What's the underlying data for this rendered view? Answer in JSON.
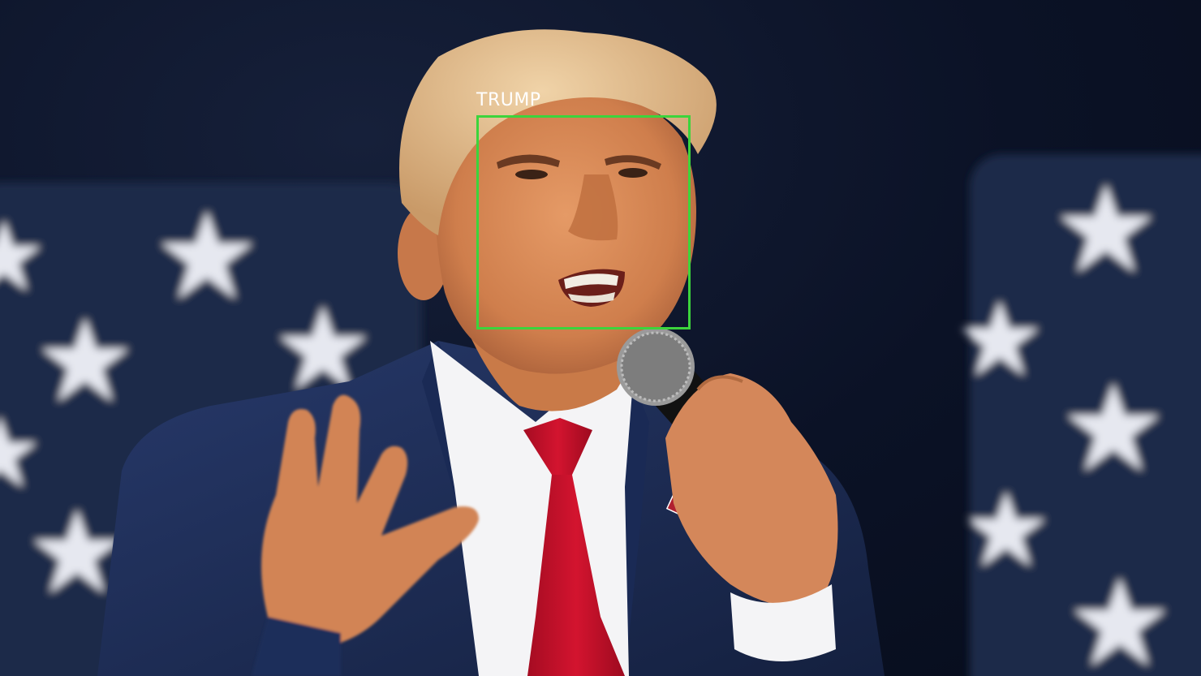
{
  "detection": {
    "label": "TRUMP",
    "box_color": "#3cd43c",
    "label_color": "#ffffff"
  },
  "palette": {
    "background": "#0b1226",
    "banner": "#1c2a48",
    "star": "#e6e8f0",
    "suit": "#1f2f5a",
    "shirt": "#f4f4f6",
    "tie": "#c8102e",
    "skin": "#d98a57",
    "hair": "#e4bf8f",
    "microphone": "#111111"
  }
}
